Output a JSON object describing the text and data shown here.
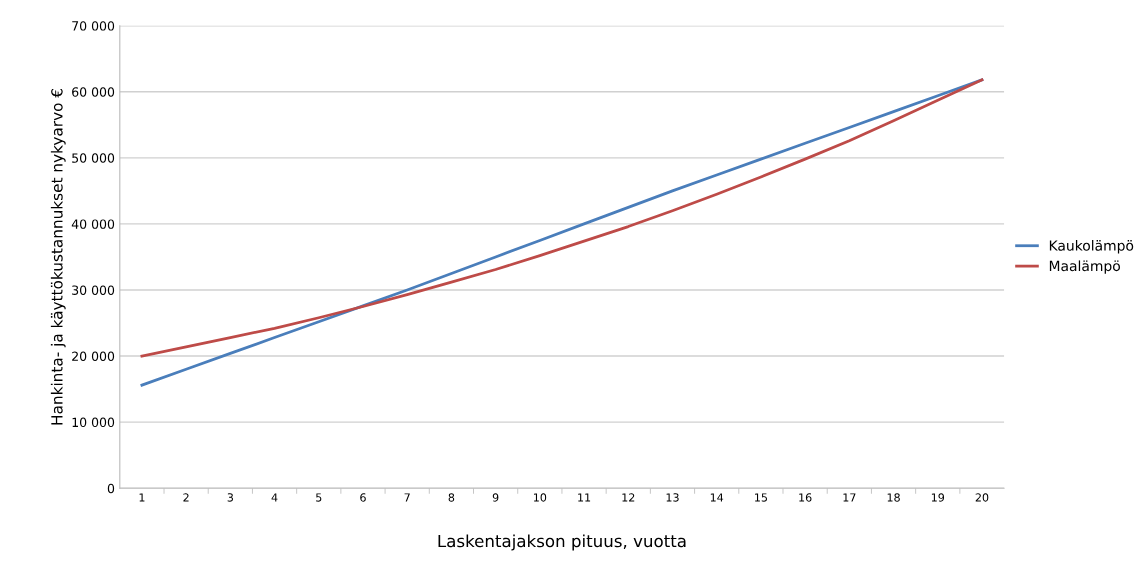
{
  "chart_data": {
    "type": "line",
    "xlabel": "Laskentajakson pituus, vuotta",
    "ylabel": "Hankinta- ja käyttökustannukset nykyarvo €",
    "categories": [
      "1",
      "2",
      "3",
      "4",
      "5",
      "6",
      "7",
      "8",
      "9",
      "10",
      "11",
      "12",
      "13",
      "14",
      "15",
      "16",
      "17",
      "18",
      "19",
      "20"
    ],
    "series": [
      {
        "name": "Kaukolämpö",
        "color": "#4a7ebb",
        "values": [
          15600,
          18000,
          20400,
          22800,
          25200,
          27600,
          30000,
          32500,
          35000,
          37500,
          40000,
          42500,
          45000,
          47400,
          49800,
          52200,
          54600,
          57000,
          59400,
          61800
        ]
      },
      {
        "name": "Maalämpö",
        "color": "#be4b48",
        "values": [
          20000,
          21400,
          22800,
          24200,
          25800,
          27500,
          29300,
          31200,
          33100,
          35200,
          37400,
          39600,
          42000,
          44500,
          47100,
          49800,
          52600,
          55600,
          58700,
          61800
        ]
      }
    ],
    "ylim": [
      0,
      70000
    ],
    "yticks": [
      {
        "value": 0,
        "label": "0"
      },
      {
        "value": 10000,
        "label": "10 000"
      },
      {
        "value": 20000,
        "label": "20 000"
      },
      {
        "value": 30000,
        "label": "30 000"
      },
      {
        "value": 40000,
        "label": "40 000"
      },
      {
        "value": 50000,
        "label": "50 000"
      },
      {
        "value": 60000,
        "label": "60 000"
      },
      {
        "value": 70000,
        "label": "70 000"
      }
    ],
    "grid": "y",
    "legend": "right",
    "marker": "none",
    "line_style": "solid"
  }
}
